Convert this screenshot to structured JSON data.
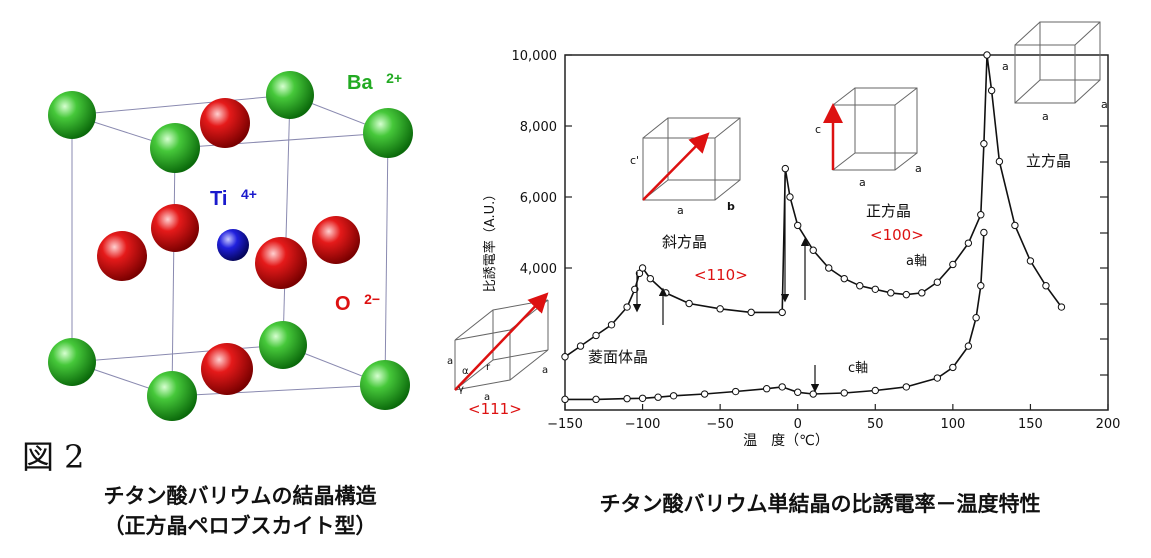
{
  "figure_label": "図 2",
  "left_panel": {
    "caption_line1": "チタン酸バリウムの結晶構造",
    "caption_line2": "（正方晶ペロブスカイト型）",
    "ion_labels": {
      "ba": "Ba",
      "ba_charge": "2+",
      "ti": "Ti",
      "ti_charge": "4+",
      "o": "O",
      "o_charge": "2−"
    },
    "colors": {
      "ba": "#22aa22",
      "ti": "#1a1acc",
      "o": "#dd1111"
    }
  },
  "right_panel": {
    "caption": "チタン酸バリウム単結晶の比誘電率－温度特性",
    "phase_labels": {
      "rhombohedral": "菱面体晶",
      "rhombohedral_dir": "<111>",
      "orthorhombic": "斜方晶",
      "orthorhombic_dir": "<110>",
      "tetragonal": "正方晶",
      "tetragonal_dir": "<100>",
      "cubic": "立方晶"
    },
    "axis_labels": {
      "a_axis": "a軸",
      "c_axis": "c軸"
    },
    "cube_letters": {
      "a": "a",
      "b": "b",
      "c": "c",
      "c_prime": "c'",
      "alpha": "α",
      "gamma": "γ",
      "r": "r"
    }
  },
  "chart_data": {
    "type": "line",
    "xlabel": "温　度（℃）",
    "ylabel": "比誘電率（A.U.）",
    "xlim": [
      -150,
      200
    ],
    "ylim": [
      0,
      10000
    ],
    "x_ticks": [
      "−150",
      "−100",
      "−50",
      "0",
      "50",
      "100",
      "150",
      "200"
    ],
    "y_ticks": [
      "4,000",
      "6,000",
      "8,000",
      "10,000"
    ],
    "series": [
      {
        "name": "a軸",
        "x": [
          -150,
          -140,
          -130,
          -120,
          -110,
          -105,
          -102,
          -100,
          -95,
          -85,
          -70,
          -50,
          -30,
          -10,
          -8,
          -5,
          0,
          10,
          20,
          30,
          40,
          50,
          60,
          70,
          80,
          90,
          100,
          110,
          118,
          120,
          122,
          125,
          130,
          140,
          150,
          160,
          170
        ],
        "y": [
          1500,
          1800,
          2100,
          2400,
          2900,
          3400,
          3850,
          4000,
          3700,
          3300,
          3000,
          2850,
          2750,
          2750,
          6800,
          6000,
          5200,
          4500,
          4000,
          3700,
          3500,
          3400,
          3300,
          3250,
          3300,
          3600,
          4100,
          4700,
          5500,
          7500,
          10000,
          9000,
          7000,
          5200,
          4200,
          3500,
          2900
        ]
      },
      {
        "name": "c軸",
        "x": [
          -150,
          -130,
          -110,
          -100,
          -90,
          -80,
          -60,
          -40,
          -20,
          -10,
          0,
          10,
          30,
          50,
          70,
          90,
          100,
          110,
          115,
          118,
          120
        ],
        "y": [
          300,
          300,
          320,
          330,
          360,
          400,
          450,
          520,
          600,
          650,
          500,
          450,
          480,
          550,
          650,
          900,
          1200,
          1800,
          2600,
          3500,
          5000
        ]
      }
    ]
  }
}
